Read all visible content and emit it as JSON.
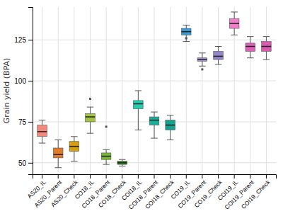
{
  "chart_data": {
    "type": "box",
    "ylabel": "Grain yield (BPA)",
    "categories": [
      "AS20_IL",
      "AS20_Parent",
      "AS20_Check",
      "CO18_IL",
      "CO18_Parent",
      "CO18_Check",
      "COI18_IL",
      "COI18_Parent",
      "COI18_Check",
      "CO19_IL",
      "CO19_Parent",
      "CO19_Check",
      "COI19_IL",
      "COI19_Parent",
      "COI19_Check"
    ],
    "boxes": [
      {
        "q1": 66,
        "median": 69,
        "q3": 73,
        "whislo": 62,
        "whishi": 76,
        "fliers": []
      },
      {
        "q1": 53,
        "median": 55,
        "q3": 59,
        "whislo": 47,
        "whishi": 64,
        "fliers": []
      },
      {
        "q1": 57,
        "median": 60,
        "q3": 63,
        "whislo": 51,
        "whishi": 66,
        "fliers": []
      },
      {
        "q1": 75,
        "median": 78,
        "q3": 80,
        "whislo": 68,
        "whishi": 84,
        "fliers": [
          89
        ]
      },
      {
        "q1": 52,
        "median": 54,
        "q3": 56,
        "whislo": 49,
        "whishi": 58,
        "fliers": [
          72
        ]
      },
      {
        "q1": 49,
        "median": 50,
        "q3": 51,
        "whislo": 48,
        "whishi": 52,
        "fliers": []
      },
      {
        "q1": 83,
        "median": 86,
        "q3": 88,
        "whislo": 70,
        "whishi": 94,
        "fliers": []
      },
      {
        "q1": 73,
        "median": 76,
        "q3": 78,
        "whislo": 65,
        "whishi": 81,
        "fliers": []
      },
      {
        "q1": 70,
        "median": 73,
        "q3": 76,
        "whislo": 64,
        "whishi": 79,
        "fliers": []
      },
      {
        "q1": 128,
        "median": 130,
        "q3": 132,
        "whislo": 124,
        "whishi": 134,
        "fliers": [
          126
        ]
      },
      {
        "q1": 112,
        "median": 113,
        "q3": 114,
        "whislo": 109,
        "whishi": 117,
        "fliers": [
          107
        ]
      },
      {
        "q1": 113,
        "median": 115,
        "q3": 118,
        "whislo": 110,
        "whishi": 121,
        "fliers": []
      },
      {
        "q1": 132,
        "median": 135,
        "q3": 138,
        "whislo": 128,
        "whishi": 142,
        "fliers": []
      },
      {
        "q1": 118,
        "median": 121,
        "q3": 123,
        "whislo": 114,
        "whishi": 127,
        "fliers": []
      },
      {
        "q1": 118,
        "median": 121,
        "q3": 124,
        "whislo": 113,
        "whishi": 127,
        "fliers": []
      }
    ],
    "colors": [
      "#f4897b",
      "#e07b28",
      "#d4a010",
      "#a4c441",
      "#78b832",
      "#3a8a28",
      "#1ecfb0",
      "#18b09a",
      "#15a090",
      "#3a9ad4",
      "#aa94d8",
      "#9484cc",
      "#f07ec8",
      "#e060b8",
      "#d85ab0"
    ],
    "ylim": [
      43,
      145
    ],
    "yticks": [
      50,
      75,
      100,
      125
    ],
    "grid": true
  }
}
